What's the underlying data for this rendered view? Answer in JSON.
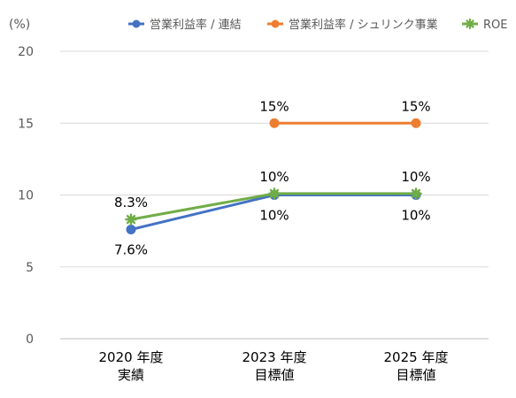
{
  "chart_data": {
    "type": "line",
    "yunit": "(%)",
    "ylim": [
      0,
      20
    ],
    "yticks": [
      "0",
      "5",
      "10",
      "15",
      "20"
    ],
    "grid": true,
    "legend_position": "top-right",
    "categories": [
      [
        "2020 年度",
        "実績"
      ],
      [
        "2023 年度",
        "目標値"
      ],
      [
        "2025 年度",
        "目標値"
      ]
    ],
    "series": [
      {
        "name": "営業利益率 / 連結",
        "color": "#4472C4",
        "marker": "circle",
        "values": [
          7.6,
          10,
          10
        ],
        "labels": [
          "7.6%",
          "10%",
          "10%"
        ],
        "label_position": "below"
      },
      {
        "name": "営業利益率 / シュリンク事業",
        "color": "#ED7D31",
        "marker": "circle",
        "values": [
          null,
          15,
          15
        ],
        "labels": [
          null,
          "15%",
          "15%"
        ],
        "label_position": "above"
      },
      {
        "name": "ROE",
        "color": "#70AD47",
        "marker": "star",
        "values": [
          8.3,
          10.1,
          10.1
        ],
        "labels": [
          "8.3%",
          "10%",
          "10%"
        ],
        "label_position": "above"
      }
    ]
  }
}
